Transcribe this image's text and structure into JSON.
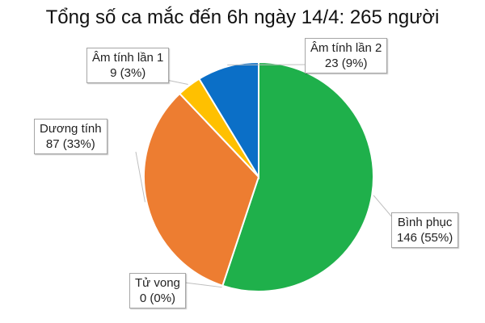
{
  "chart_data": {
    "type": "pie",
    "title": "Tổng số ca mắc đến 6h ngày 14/4: 265 người",
    "total": 265,
    "slices": [
      {
        "label": "Bình phục",
        "value": 146,
        "percent_label": "146 (55%)",
        "color": "#1fb04b"
      },
      {
        "label": "Tử vong",
        "value": 0,
        "percent_label": "0 (0%)",
        "color": "#7f7f7f"
      },
      {
        "label": "Dương tính",
        "value": 87,
        "percent_label": "87 (33%)",
        "color": "#ed7d31"
      },
      {
        "label": "Âm tính lần 1",
        "value": 9,
        "percent_label": "9 (3%)",
        "color": "#ffc000"
      },
      {
        "label": "Âm tính lần 2",
        "value": 23,
        "percent_label": "23 (9%)",
        "color": "#0b6fc7"
      }
    ]
  }
}
